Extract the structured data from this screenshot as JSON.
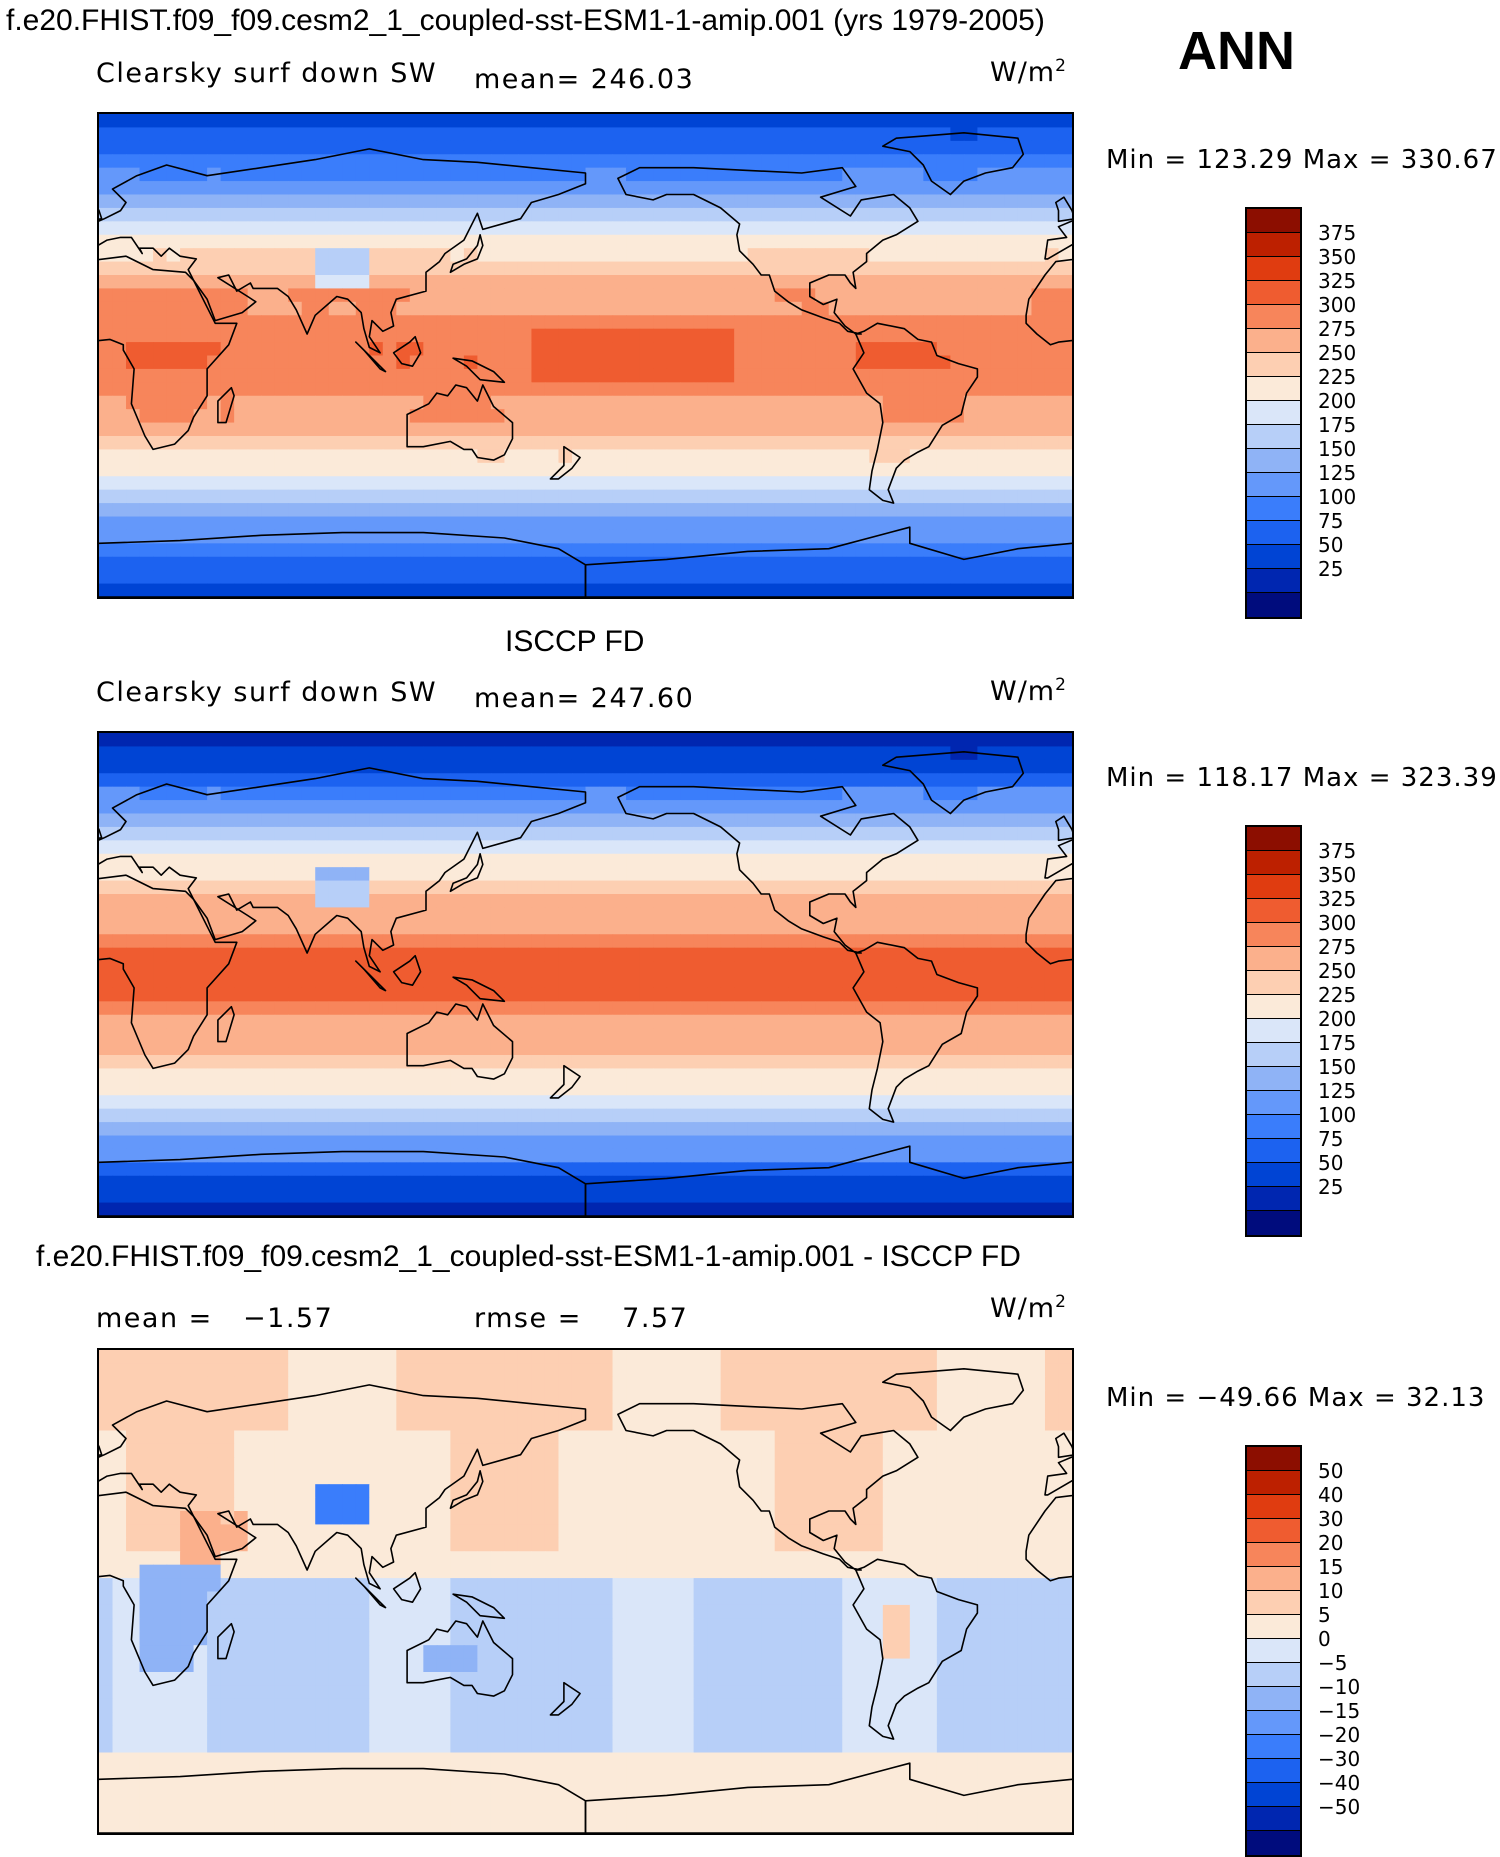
{
  "header": {
    "title": "f.e20.FHIST.f09_f09.cesm2_1_coupled-sst-ESM1-1-amip.001 (yrs 1979-2005)",
    "season": "ANN"
  },
  "colors": {
    "abs_scale": [
      "#000c7d",
      "#0026b0",
      "#0044d4",
      "#1c62f0",
      "#3a7dfb",
      "#6498fa",
      "#8fb3f6",
      "#b7cff8",
      "#dae6f9",
      "#fbead9",
      "#fdcfb2",
      "#fbb08c",
      "#f7855b",
      "#ef5c30",
      "#e03c10",
      "#bd2000",
      "#8c0e00"
    ],
    "diff_scale": [
      "#000c7d",
      "#0026b0",
      "#0044d4",
      "#1c62f0",
      "#3a7dfb",
      "#6498fa",
      "#8fb3f6",
      "#b7cff8",
      "#dae6f9",
      "#fbead9",
      "#fdcfb2",
      "#fbb08c",
      "#f7855b",
      "#ef5c30",
      "#e03c10",
      "#bd2000",
      "#8c0e00"
    ],
    "coast": "#000000"
  },
  "panels": [
    {
      "title": "",
      "variable": "Clearsky surf down SW",
      "stat_label": "mean=",
      "stat_value": "246.03",
      "units": "W/m",
      "units_sup": "2",
      "minmax": "Min = 123.29 Max = 330.67",
      "ticks": [
        "375",
        "350",
        "325",
        "300",
        "275",
        "250",
        "225",
        "200",
        "175",
        "150",
        "125",
        "100",
        "75",
        "50",
        "25"
      ]
    },
    {
      "title": "ISCCP FD",
      "variable": "Clearsky surf down SW",
      "stat_label": "mean=",
      "stat_value": "247.60",
      "units": "W/m",
      "units_sup": "2",
      "minmax": "Min = 118.17 Max = 323.39",
      "ticks": [
        "375",
        "350",
        "325",
        "300",
        "275",
        "250",
        "225",
        "200",
        "175",
        "150",
        "125",
        "100",
        "75",
        "50",
        "25"
      ]
    },
    {
      "title": "f.e20.FHIST.f09_f09.cesm2_1_coupled-sst-ESM1-1-amip.001 - ISCCP FD",
      "stat_label": "mean =",
      "stat_value": "−1.57",
      "rmse_label": "rmse =",
      "rmse_value": "7.57",
      "units": "W/m",
      "units_sup": "2",
      "minmax": "Min = −49.66 Max =  32.13",
      "ticks": [
        "50",
        "40",
        "30",
        "20",
        "15",
        "10",
        "5",
        "0",
        "−5",
        "−10",
        "−15",
        "−20",
        "−30",
        "−40",
        "−50"
      ]
    }
  ]
}
